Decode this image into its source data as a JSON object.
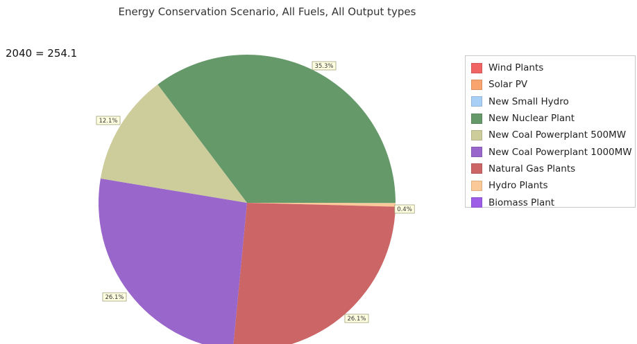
{
  "chart_data": {
    "type": "pie",
    "title": "Energy Conservation Scenario, All Fuels, All Output types",
    "subtitle": "2040 = 254.1",
    "legend_position": "right",
    "categories": [
      "Wind Plants",
      "Solar PV",
      "New Small Hydro",
      "New Nuclear Plant",
      "New Coal Powerplant 500MW",
      "New Coal Powerplant 1000MW",
      "Natural Gas Plants",
      "Hydro Plants",
      "Biomass Plant"
    ],
    "colors": [
      "#f06464",
      "#f9a36e",
      "#a8cff5",
      "#66996a",
      "#cdcc9b",
      "#9966cc",
      "#cc6666",
      "#fbc898",
      "#9e5de6"
    ],
    "slices": [
      {
        "name": "New Nuclear Plant",
        "value": 35.3,
        "label": "35.3%",
        "color": "#66996a"
      },
      {
        "name": "Hydro Plants",
        "value": 0.4,
        "label": "0.4%",
        "color": "#fbc898"
      },
      {
        "name": "Natural Gas Plants",
        "value": 26.1,
        "label": "26.1%",
        "color": "#cc6666"
      },
      {
        "name": "New Coal Powerplant 1000MW",
        "value": 26.1,
        "label": "26.1%",
        "color": "#9966cc"
      },
      {
        "name": "New Coal Powerplant 500MW",
        "value": 12.1,
        "label": "12.1%",
        "color": "#cdcc9b"
      }
    ]
  }
}
